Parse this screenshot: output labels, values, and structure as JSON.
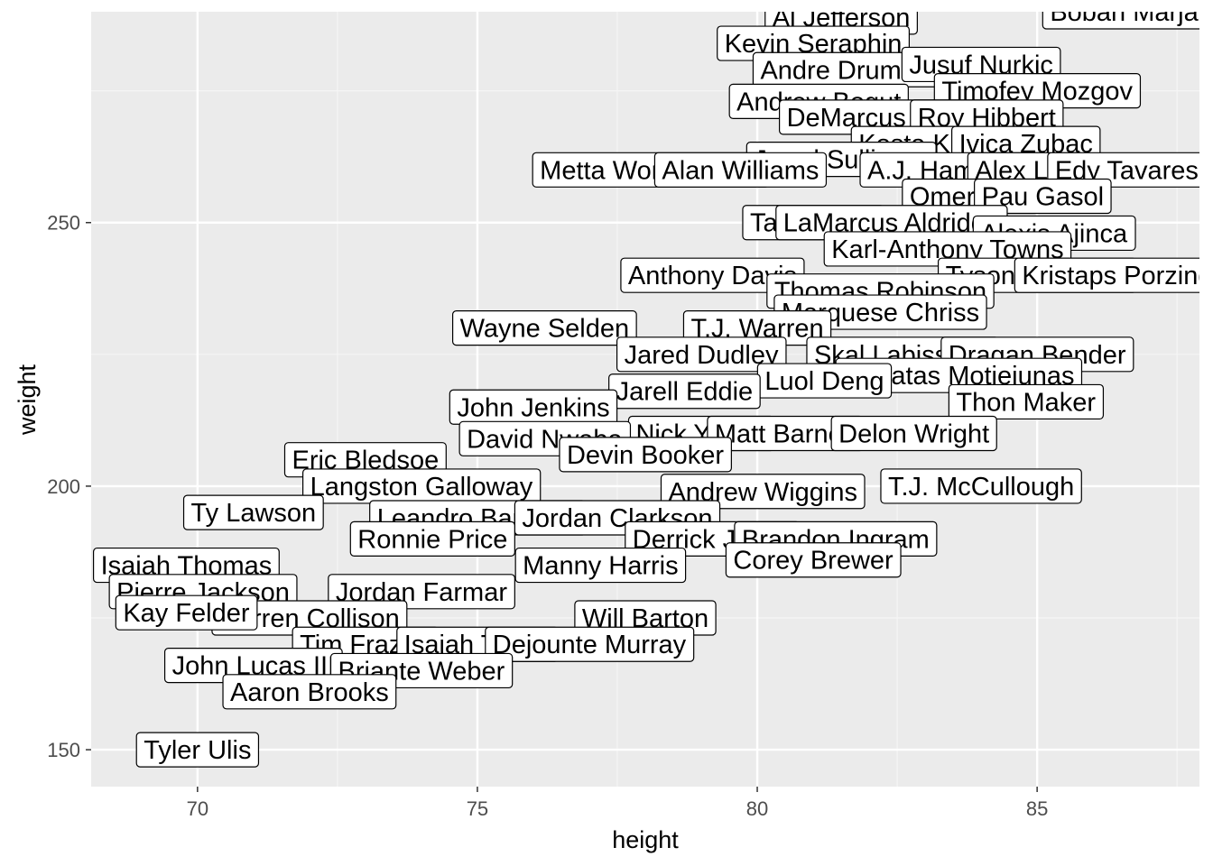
{
  "chart_data": {
    "type": "scatter",
    "title": "",
    "xlabel": "height",
    "ylabel": "weight",
    "xlim": [
      68.1,
      87.9
    ],
    "ylim": [
      143,
      290
    ],
    "xticks": [
      70,
      75,
      80,
      85
    ],
    "yticks": [
      150,
      200,
      250
    ],
    "grid": true,
    "legend": "none",
    "colors": {
      "panel": "#ebebeb",
      "grid_major": "#ffffff",
      "grid_minor": "#f5f5f5",
      "label_fill": "#ffffff",
      "label_border": "#000000",
      "tick": "#4d4d4d"
    },
    "points": [
      {
        "label": "Al Jefferson",
        "x": 81.5,
        "y": 289
      },
      {
        "label": "Boban Marjanovic",
        "x": 87.1,
        "y": 290
      },
      {
        "label": "Kevin Seraphin",
        "x": 81,
        "y": 284
      },
      {
        "label": "Andre Drummond",
        "x": 81.9,
        "y": 279
      },
      {
        "label": "Jusuf Nurkic",
        "x": 84,
        "y": 280
      },
      {
        "label": "Timofey Mozgov",
        "x": 85,
        "y": 275
      },
      {
        "label": "Andrew Bogut",
        "x": 81.1,
        "y": 273
      },
      {
        "label": "DeMarcus Cousins",
        "x": 82.5,
        "y": 270
      },
      {
        "label": "Roy Hibbert",
        "x": 84.1,
        "y": 270
      },
      {
        "label": "Kosta Koufos",
        "x": 83.2,
        "y": 265
      },
      {
        "label": "Ivica Zubac",
        "x": 84.8,
        "y": 265
      },
      {
        "label": "Jared Sullinger",
        "x": 81.5,
        "y": 262
      },
      {
        "label": "Metta World Peace",
        "x": 78.1,
        "y": 260
      },
      {
        "label": "Alan Williams",
        "x": 79.7,
        "y": 260
      },
      {
        "label": "A.J. Hammons",
        "x": 83.5,
        "y": 260
      },
      {
        "label": "Alex Len",
        "x": 84.8,
        "y": 260
      },
      {
        "label": "Edy Tavares",
        "x": 86.6,
        "y": 260
      },
      {
        "label": "Omer Asik",
        "x": 83.8,
        "y": 255
      },
      {
        "label": "Pau Gasol",
        "x": 85.1,
        "y": 255
      },
      {
        "label": "Tarik Black",
        "x": 81,
        "y": 250
      },
      {
        "label": "LaMarcus Aldridge",
        "x": 82.4,
        "y": 250
      },
      {
        "label": "Alexis Ajinca",
        "x": 85.3,
        "y": 248
      },
      {
        "label": "Karl-Anthony Towns",
        "x": 83.4,
        "y": 245
      },
      {
        "label": "Anthony Davis",
        "x": 79.2,
        "y": 240
      },
      {
        "label": "Tyson Chandler",
        "x": 85,
        "y": 240
      },
      {
        "label": "Kristaps Porzingis",
        "x": 86.6,
        "y": 240
      },
      {
        "label": "Thomas Robinson",
        "x": 82.2,
        "y": 237
      },
      {
        "label": "Marquese Chriss",
        "x": 82.2,
        "y": 233
      },
      {
        "label": "T.J. Warren",
        "x": 80,
        "y": 230
      },
      {
        "label": "Wayne Selden",
        "x": 76.2,
        "y": 230
      },
      {
        "label": "Skal Labissiere",
        "x": 82.6,
        "y": 225
      },
      {
        "label": "Dragan Bender",
        "x": 85,
        "y": 225
      },
      {
        "label": "Jared Dudley",
        "x": 79,
        "y": 225
      },
      {
        "label": "Donatas Motiejunas",
        "x": 83.6,
        "y": 221
      },
      {
        "label": "Luol Deng",
        "x": 81.2,
        "y": 220
      },
      {
        "label": "Jarell Eddie",
        "x": 78.7,
        "y": 218
      },
      {
        "label": "Thon Maker",
        "x": 84.8,
        "y": 216
      },
      {
        "label": "John Jenkins",
        "x": 76,
        "y": 215
      },
      {
        "label": "Nick Young",
        "x": 79,
        "y": 210
      },
      {
        "label": "Matt Barnes",
        "x": 80.5,
        "y": 210
      },
      {
        "label": "Delon Wright",
        "x": 82.8,
        "y": 210
      },
      {
        "label": "David Nwaba",
        "x": 76.2,
        "y": 209
      },
      {
        "label": "Eric Bledsoe",
        "x": 73,
        "y": 205
      },
      {
        "label": "Devin Booker",
        "x": 78,
        "y": 206
      },
      {
        "label": "Langston Galloway",
        "x": 74,
        "y": 200
      },
      {
        "label": "T.J. McCullough",
        "x": 84,
        "y": 200
      },
      {
        "label": "Andrew Wiggins",
        "x": 80.1,
        "y": 199
      },
      {
        "label": "Ty Lawson",
        "x": 71,
        "y": 195
      },
      {
        "label": "Leandro Barbosa",
        "x": 75,
        "y": 194
      },
      {
        "label": "Jordan Clarkson",
        "x": 77.5,
        "y": 194
      },
      {
        "label": "Ronnie Price",
        "x": 74.2,
        "y": 190
      },
      {
        "label": "Derrick Jones",
        "x": 79.2,
        "y": 190
      },
      {
        "label": "Brandon Ingram",
        "x": 81.4,
        "y": 190
      },
      {
        "label": "Corey Brewer",
        "x": 81,
        "y": 186
      },
      {
        "label": "Manny Harris",
        "x": 77.2,
        "y": 185
      },
      {
        "label": "Isaiah Thomas",
        "x": 69.8,
        "y": 185
      },
      {
        "label": "Pierre Jackson",
        "x": 70.1,
        "y": 180
      },
      {
        "label": "Jordan Farmar",
        "x": 74,
        "y": 180
      },
      {
        "label": "Will Barton",
        "x": 78,
        "y": 175
      },
      {
        "label": "Darren Collison",
        "x": 72,
        "y": 175
      },
      {
        "label": "Kay Felder",
        "x": 69.8,
        "y": 176
      },
      {
        "label": "Tim Frazier",
        "x": 73,
        "y": 170
      },
      {
        "label": "Isaiah Taylor",
        "x": 75,
        "y": 170
      },
      {
        "label": "Dejounte Murray",
        "x": 77,
        "y": 170
      },
      {
        "label": "John Lucas III",
        "x": 71,
        "y": 166
      },
      {
        "label": "Briante Weber",
        "x": 74,
        "y": 165
      },
      {
        "label": "Aaron Brooks",
        "x": 72,
        "y": 161
      },
      {
        "label": "Tyler Ulis",
        "x": 70,
        "y": 150
      }
    ]
  }
}
